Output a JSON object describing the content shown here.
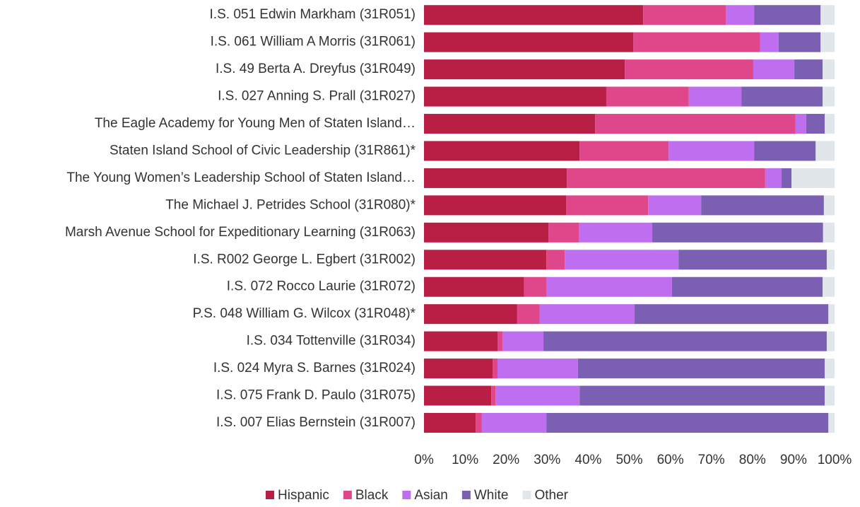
{
  "chart_data": {
    "type": "stacked_bar_horizontal",
    "categories": [
      "I.S. 051 Edwin Markham (31R051)",
      "I.S. 061 William A Morris (31R061)",
      "I.S. 49 Berta A. Dreyfus (31R049)",
      "I.S. 027 Anning S. Prall (31R027)",
      "The Eagle Academy for Young Men of Staten Island…",
      "Staten Island School of Civic Leadership (31R861)*",
      "The Young Women’s Leadership School of Staten Island…",
      "The Michael J. Petrides School (31R080)*",
      "Marsh Avenue School for Expeditionary Learning (31R063)",
      "I.S. R002 George L. Egbert (31R002)",
      "I.S. 072 Rocco Laurie (31R072)",
      "P.S. 048 William G. Wilcox (31R048)*",
      "I.S. 034 Tottenville (31R034)",
      "I.S. 024 Myra S. Barnes (31R024)",
      "I.S. 075 Frank D. Paulo (31R075)",
      "I.S. 007 Elias Bernstein (31R007)"
    ],
    "series": [
      {
        "name": "Hispanic",
        "color": "#b91f44",
        "values": [
          53.4,
          51.0,
          48.9,
          44.4,
          41.7,
          37.9,
          34.8,
          34.6,
          30.3,
          29.8,
          24.4,
          22.7,
          17.9,
          16.7,
          16.4,
          12.6
        ]
      },
      {
        "name": "Black",
        "color": "#e0468a",
        "values": [
          20.1,
          30.9,
          31.3,
          20.1,
          48.8,
          21.7,
          48.3,
          20.0,
          7.4,
          4.5,
          5.5,
          5.5,
          1.2,
          1.2,
          1.0,
          1.5
        ]
      },
      {
        "name": "Asian",
        "color": "#bf6ef0",
        "values": [
          6.9,
          4.5,
          10.0,
          12.8,
          2.6,
          20.8,
          4.0,
          12.9,
          17.9,
          27.7,
          30.5,
          23.1,
          10.0,
          19.6,
          20.5,
          15.7
        ]
      },
      {
        "name": "White",
        "color": "#7b5fb3",
        "values": [
          16.2,
          10.2,
          6.9,
          19.8,
          4.5,
          15.0,
          2.4,
          29.9,
          41.6,
          36.1,
          36.7,
          47.2,
          69.0,
          60.1,
          59.7,
          68.7
        ]
      },
      {
        "name": "Other",
        "color": "#e0e6ea",
        "values": [
          3.4,
          3.4,
          2.9,
          2.9,
          2.4,
          4.6,
          10.5,
          2.6,
          2.8,
          1.9,
          2.9,
          1.5,
          1.9,
          2.4,
          2.4,
          1.5
        ]
      }
    ],
    "xlim": [
      0,
      100
    ],
    "xticks": [
      {
        "value": 0,
        "label": "0%"
      },
      {
        "value": 10,
        "label": "10%"
      },
      {
        "value": 20,
        "label": "20%"
      },
      {
        "value": 30,
        "label": "30%"
      },
      {
        "value": 40,
        "label": "40%"
      },
      {
        "value": 50,
        "label": "50%"
      },
      {
        "value": 60,
        "label": "60%"
      },
      {
        "value": 70,
        "label": "70%"
      },
      {
        "value": 80,
        "label": "80%"
      },
      {
        "value": 90,
        "label": "90%"
      },
      {
        "value": 100,
        "label": "100%"
      }
    ],
    "legend": "bottom"
  }
}
